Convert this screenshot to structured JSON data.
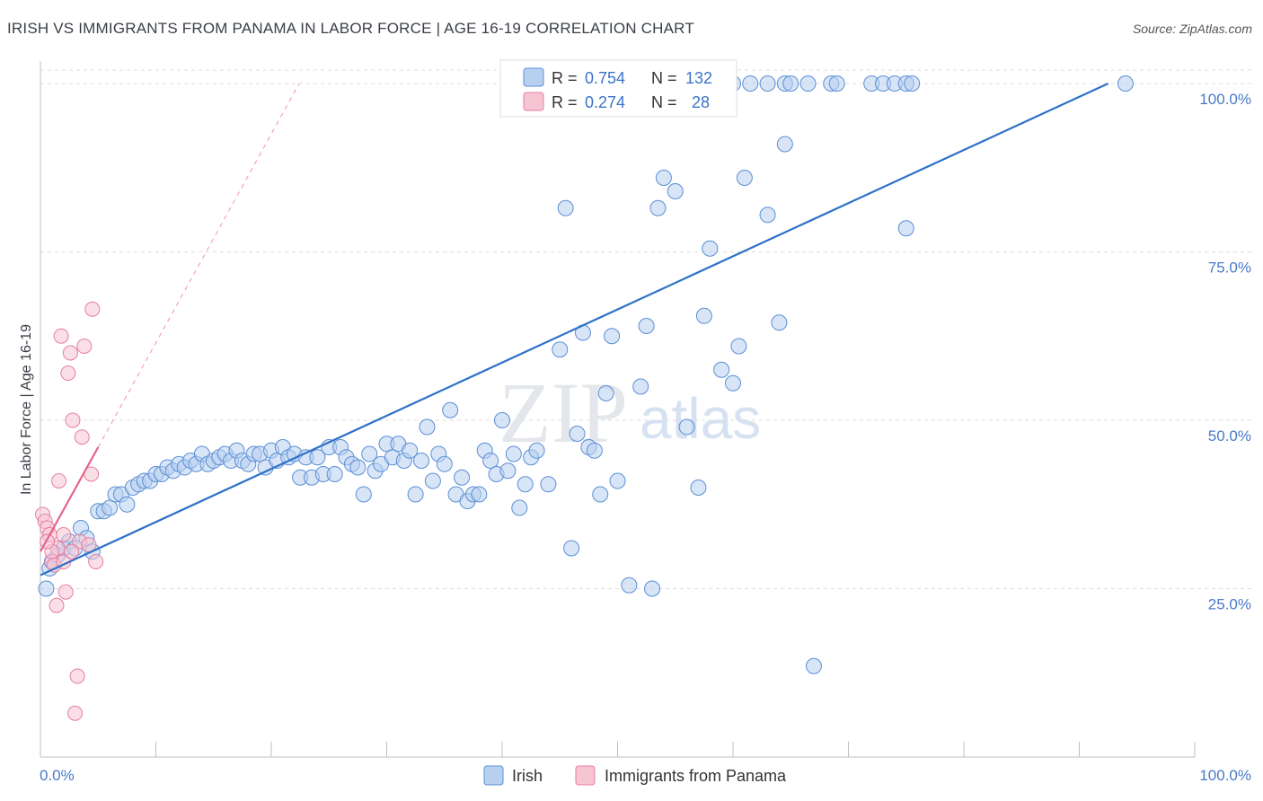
{
  "header": {
    "title": "IRISH VS IMMIGRANTS FROM PANAMA IN LABOR FORCE | AGE 16-19 CORRELATION CHART",
    "source": "Source: ZipAtlas.com"
  },
  "watermark": {
    "zip": "ZIP",
    "atlas": "atlas"
  },
  "colors": {
    "irish": "#5b8fd6",
    "irish_fill": "#b8d0f0",
    "panama": "#e67fa0",
    "panama_fill": "#f6c4d3",
    "irish_line": "#2f72c9",
    "panama_line": "#e8628a",
    "tick": "#4a79c9"
  },
  "legend_box": {
    "row1": {
      "r_label": "R =",
      "r_value": "0.754",
      "n_label": "N =",
      "n_value": "132"
    },
    "row2": {
      "r_label": "R =",
      "r_value": "0.274",
      "n_label": "N =",
      "n_value": "28"
    }
  },
  "chart_data": {
    "type": "scatter",
    "title": "IRISH VS IMMIGRANTS FROM PANAMA IN LABOR FORCE | AGE 16-19 CORRELATION CHART",
    "xlabel": "",
    "ylabel": "In Labor Force | Age 16-19",
    "xlim": [
      0,
      100
    ],
    "ylim": [
      0,
      102
    ],
    "x_tick_labels": [
      "0.0%",
      "100.0%"
    ],
    "y_ticks": [
      25,
      50,
      75,
      100
    ],
    "y_tick_labels": [
      "25.0%",
      "50.0%",
      "75.0%",
      "100.0%"
    ],
    "grid": true,
    "legend_position": "bottom",
    "series": [
      {
        "name": "Irish",
        "color": "#5b8fd6",
        "points": [
          [
            0.5,
            25
          ],
          [
            0.8,
            28
          ],
          [
            1.0,
            29
          ],
          [
            1.5,
            30
          ],
          [
            2.0,
            31
          ],
          [
            2.5,
            32
          ],
          [
            3.0,
            31
          ],
          [
            3.5,
            34
          ],
          [
            4.0,
            32.5
          ],
          [
            4.5,
            30.5
          ],
          [
            5.0,
            36.5
          ],
          [
            5.5,
            36.5
          ],
          [
            6.0,
            37
          ],
          [
            6.5,
            39
          ],
          [
            7.0,
            39
          ],
          [
            7.5,
            37.5
          ],
          [
            8.0,
            40
          ],
          [
            8.5,
            40.5
          ],
          [
            9.0,
            41
          ],
          [
            9.5,
            41
          ],
          [
            10,
            42
          ],
          [
            10.5,
            42
          ],
          [
            11,
            43
          ],
          [
            11.5,
            42.5
          ],
          [
            12,
            43.5
          ],
          [
            12.5,
            43
          ],
          [
            13,
            44
          ],
          [
            13.5,
            43.5
          ],
          [
            14,
            45
          ],
          [
            14.5,
            43.5
          ],
          [
            15,
            44
          ],
          [
            15.5,
            44.5
          ],
          [
            16,
            45
          ],
          [
            16.5,
            44
          ],
          [
            17,
            45.5
          ],
          [
            17.5,
            44
          ],
          [
            18,
            43.5
          ],
          [
            18.5,
            45
          ],
          [
            19,
            45
          ],
          [
            19.5,
            43
          ],
          [
            20,
            45.5
          ],
          [
            20.5,
            44
          ],
          [
            21,
            46
          ],
          [
            21.5,
            44.5
          ],
          [
            22,
            45
          ],
          [
            22.5,
            41.5
          ],
          [
            23,
            44.5
          ],
          [
            23.5,
            41.5
          ],
          [
            24,
            44.5
          ],
          [
            24.5,
            42
          ],
          [
            25,
            46
          ],
          [
            25.5,
            42
          ],
          [
            26,
            46
          ],
          [
            26.5,
            44.5
          ],
          [
            27,
            43.5
          ],
          [
            27.5,
            43
          ],
          [
            28,
            39
          ],
          [
            28.5,
            45
          ],
          [
            29,
            42.5
          ],
          [
            29.5,
            43.5
          ],
          [
            30,
            46.5
          ],
          [
            30.5,
            44.5
          ],
          [
            31,
            46.5
          ],
          [
            31.5,
            44
          ],
          [
            32,
            45.5
          ],
          [
            32.5,
            39
          ],
          [
            33,
            44
          ],
          [
            33.5,
            49
          ],
          [
            34,
            41
          ],
          [
            34.5,
            45
          ],
          [
            35,
            43.5
          ],
          [
            35.5,
            51.5
          ],
          [
            36,
            39
          ],
          [
            36.5,
            41.5
          ],
          [
            37,
            38
          ],
          [
            37.5,
            39
          ],
          [
            38,
            39
          ],
          [
            38.5,
            45.5
          ],
          [
            39,
            44
          ],
          [
            39.5,
            42
          ],
          [
            40,
            50
          ],
          [
            40.5,
            42.5
          ],
          [
            41,
            45
          ],
          [
            41.5,
            37
          ],
          [
            42,
            40.5
          ],
          [
            42.5,
            44.5
          ],
          [
            43,
            45.5
          ],
          [
            44,
            40.5
          ],
          [
            45,
            60.5
          ],
          [
            45.5,
            81.5
          ],
          [
            46,
            31
          ],
          [
            46.5,
            48
          ],
          [
            47,
            63
          ],
          [
            47.5,
            46
          ],
          [
            48,
            45.5
          ],
          [
            48.5,
            39
          ],
          [
            49,
            54
          ],
          [
            49.5,
            62.5
          ],
          [
            50,
            41
          ],
          [
            51,
            25.5
          ],
          [
            52,
            55
          ],
          [
            52.5,
            64
          ],
          [
            53,
            25
          ],
          [
            53.5,
            81.5
          ],
          [
            54,
            86
          ],
          [
            55,
            84
          ],
          [
            56,
            49
          ],
          [
            57,
            40
          ],
          [
            57.5,
            65.5
          ],
          [
            58,
            75.5
          ],
          [
            59,
            57.5
          ],
          [
            60,
            55.5
          ],
          [
            60.5,
            61
          ],
          [
            61,
            86
          ],
          [
            63,
            80.5
          ],
          [
            64,
            64.5
          ],
          [
            64.5,
            91
          ],
          [
            67,
            13.5
          ],
          [
            75,
            78.5
          ],
          [
            45.5,
            100
          ],
          [
            47,
            100
          ],
          [
            50,
            100
          ],
          [
            52,
            100
          ],
          [
            52.5,
            100
          ],
          [
            54,
            100
          ],
          [
            56,
            100
          ],
          [
            58,
            100
          ],
          [
            60,
            100
          ],
          [
            61.5,
            100
          ],
          [
            63,
            100
          ],
          [
            64.5,
            100
          ],
          [
            65,
            100
          ],
          [
            66.5,
            100
          ],
          [
            68.5,
            100
          ],
          [
            69,
            100
          ],
          [
            72,
            100
          ],
          [
            73,
            100
          ],
          [
            74,
            100
          ],
          [
            75,
            100
          ],
          [
            75.5,
            100
          ],
          [
            94,
            100
          ]
        ]
      },
      {
        "name": "Immigrants from Panama",
        "color": "#e67fa0",
        "points": [
          [
            0.2,
            36
          ],
          [
            0.4,
            35
          ],
          [
            0.6,
            34
          ],
          [
            0.8,
            33
          ],
          [
            1.0,
            29
          ],
          [
            1.2,
            28.5
          ],
          [
            1.4,
            22.5
          ],
          [
            1.5,
            31
          ],
          [
            1.6,
            41
          ],
          [
            1.8,
            62.5
          ],
          [
            2.0,
            29
          ],
          [
            2.2,
            24.5
          ],
          [
            2.4,
            57
          ],
          [
            2.6,
            60
          ],
          [
            2.8,
            50
          ],
          [
            3.0,
            6.5
          ],
          [
            3.2,
            12
          ],
          [
            3.4,
            32
          ],
          [
            3.6,
            47.5
          ],
          [
            3.8,
            61
          ],
          [
            4.2,
            31.5
          ],
          [
            4.4,
            42
          ],
          [
            4.5,
            66.5
          ],
          [
            4.8,
            29
          ],
          [
            2.0,
            33
          ],
          [
            1.0,
            30.5
          ],
          [
            0.6,
            32
          ],
          [
            2.7,
            30.5
          ]
        ]
      }
    ],
    "trend_lines": [
      {
        "series": "Irish",
        "x": [
          0,
          92.5
        ],
        "y": [
          27,
          100
        ]
      },
      {
        "series": "Immigrants from Panama",
        "x": [
          0,
          5
        ],
        "y": [
          30.5,
          46
        ]
      }
    ]
  },
  "bottom_legend": {
    "irish_label": "Irish",
    "panama_label": "Immigrants from Panama"
  }
}
